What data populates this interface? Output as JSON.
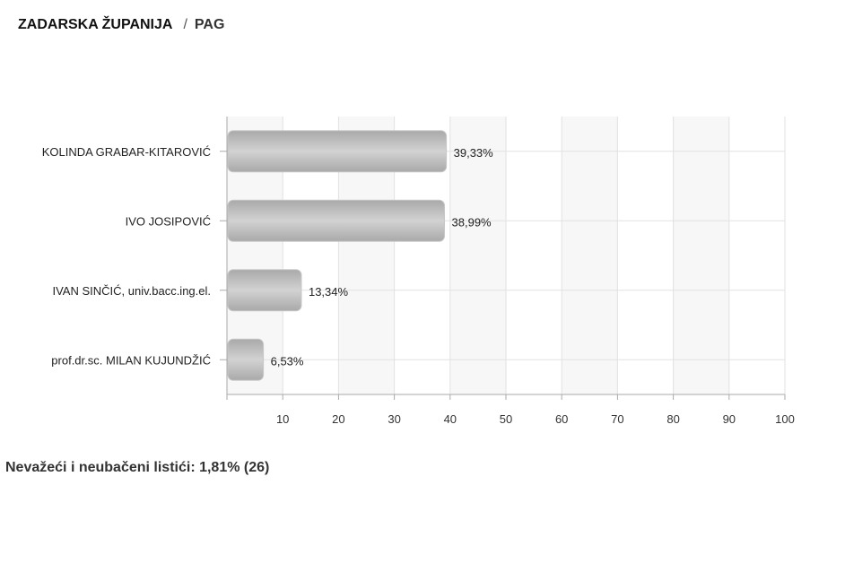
{
  "header": {
    "region": "ZADARSKA ŽUPANIJA",
    "separator": "/",
    "place": "PAG"
  },
  "chart_data": {
    "type": "bar",
    "orientation": "horizontal",
    "categories": [
      "KOLINDA GRABAR-KITAROVIĆ",
      "IVO JOSIPOVIĆ",
      "IVAN SINČIĆ, univ.bacc.ing.el.",
      "prof.dr.sc. MILAN KUJUNDŽIĆ"
    ],
    "values": [
      39.33,
      38.99,
      13.34,
      6.53
    ],
    "data_labels": [
      "39,33%",
      "38,99%",
      "13,34%",
      "6,53%"
    ],
    "xlim": [
      0,
      100
    ],
    "xticks": [
      10,
      20,
      30,
      40,
      50,
      60,
      70,
      80,
      90,
      100
    ],
    "grid": true,
    "alternate_bands": true,
    "colors": {
      "bar_dark": "#a9a9a9",
      "bar_light": "#d2d2d2",
      "band": "#f7f7f7",
      "grid": "#e2e2e2"
    }
  },
  "footer": {
    "invalid_ballots": "Nevažeći i neubačeni listići: 1,81% (26)"
  }
}
